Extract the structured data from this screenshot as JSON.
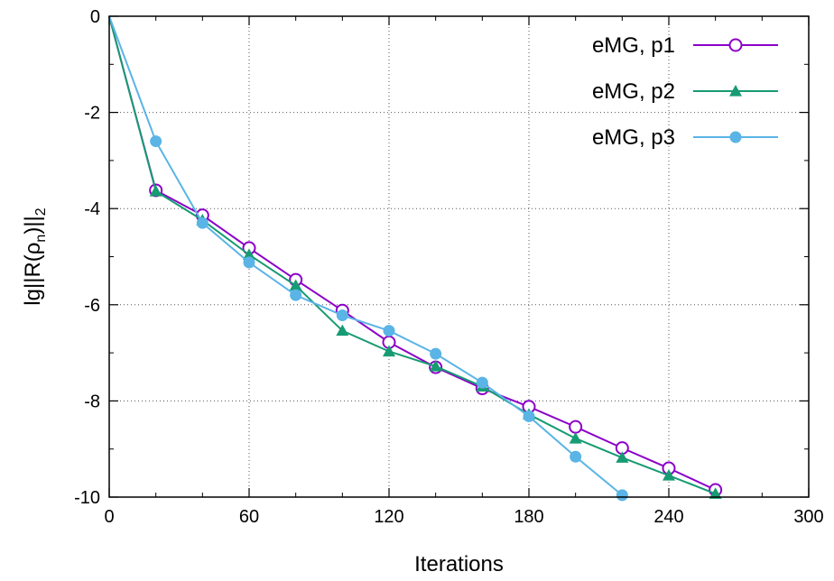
{
  "chart_data": {
    "type": "line",
    "xlabel": "Iterations",
    "ylabel": "lg||R(ρ",
    "ylabel_sub_n": "n",
    "ylabel_close": ")||",
    "ylabel_sub_2": "2",
    "xlim": [
      0,
      300
    ],
    "ylim": [
      -10,
      0
    ],
    "xticks": [
      0,
      60,
      120,
      180,
      240,
      300
    ],
    "yticks": [
      0,
      -2,
      -4,
      -6,
      -8,
      -10
    ],
    "xtick_labels": [
      "0",
      "60",
      "120",
      "180",
      "240",
      "300"
    ],
    "ytick_labels": [
      "0",
      "-2",
      "-4",
      "-6",
      "-8",
      "-10"
    ],
    "grid": true,
    "legend_position": "top-right",
    "series": [
      {
        "name": "eMG, p1",
        "color": "#8b00c8",
        "marker": "open-circle",
        "x": [
          0,
          20,
          40,
          60,
          80,
          100,
          120,
          140,
          160,
          180,
          200,
          220,
          240,
          260
        ],
        "y": [
          0,
          -3.62,
          -4.14,
          -4.82,
          -5.48,
          -6.12,
          -6.78,
          -7.3,
          -7.74,
          -8.12,
          -8.54,
          -8.98,
          -9.4,
          -9.85
        ]
      },
      {
        "name": "eMG, p2",
        "color": "#179b73",
        "marker": "filled-triangle",
        "x": [
          0,
          20,
          40,
          60,
          80,
          100,
          120,
          140,
          160,
          180,
          200,
          220,
          240,
          260
        ],
        "y": [
          0,
          -3.64,
          -4.24,
          -4.96,
          -5.6,
          -6.54,
          -6.97,
          -7.28,
          -7.7,
          -8.28,
          -8.78,
          -9.18,
          -9.55,
          -9.93
        ]
      },
      {
        "name": "eMG, p3",
        "color": "#5ab4e6",
        "marker": "filled-circle",
        "x": [
          0,
          20,
          40,
          60,
          80,
          100,
          120,
          140,
          160,
          180,
          200,
          220
        ],
        "y": [
          0,
          -2.6,
          -4.3,
          -5.12,
          -5.8,
          -6.22,
          -6.54,
          -7.02,
          -7.62,
          -8.32,
          -9.16,
          -9.96
        ]
      }
    ]
  }
}
